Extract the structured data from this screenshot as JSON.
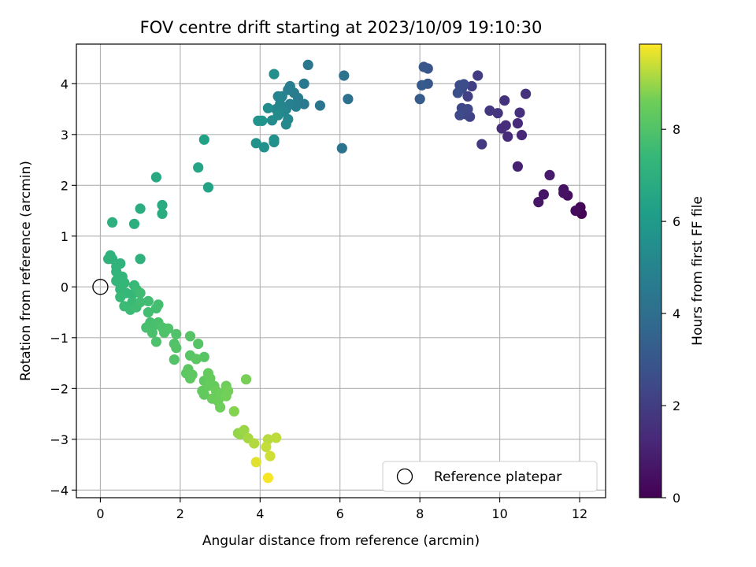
{
  "chart_data": {
    "type": "scatter",
    "title": "FOV centre drift starting at 2023/10/09 19:10:30",
    "xlabel": "Angular distance from reference (arcmin)",
    "ylabel": "Rotation from reference (arcmin)",
    "xlim": [
      -0.6,
      12.65
    ],
    "ylim": [
      -4.15,
      4.78
    ],
    "xticks": [
      0,
      2,
      4,
      6,
      8,
      10,
      12
    ],
    "yticks": [
      -4,
      -3,
      -2,
      -1,
      0,
      1,
      2,
      3,
      4
    ],
    "grid": true,
    "legend": {
      "placement": "lower-right",
      "entries": [
        "Reference platepar"
      ]
    },
    "reference_point": {
      "x": 0,
      "y": 0,
      "label": "Reference platepar"
    },
    "colorbar": {
      "label": "Hours from first FF file",
      "range": [
        0,
        9.85
      ],
      "ticks": [
        0,
        2,
        4,
        6,
        8
      ],
      "colormap": "viridis"
    },
    "points": [
      {
        "x": 12.05,
        "y": 1.44,
        "c": 0.05
      },
      {
        "x": 12.02,
        "y": 1.57,
        "c": 0.15
      },
      {
        "x": 11.9,
        "y": 1.5,
        "c": 0.3
      },
      {
        "x": 11.7,
        "y": 1.8,
        "c": 0.4
      },
      {
        "x": 11.6,
        "y": 1.92,
        "c": 0.5
      },
      {
        "x": 11.6,
        "y": 1.85,
        "c": 0.55
      },
      {
        "x": 11.1,
        "y": 1.82,
        "c": 0.6
      },
      {
        "x": 10.97,
        "y": 1.67,
        "c": 0.65
      },
      {
        "x": 11.25,
        "y": 2.2,
        "c": 0.8
      },
      {
        "x": 10.45,
        "y": 2.37,
        "c": 1.0
      },
      {
        "x": 10.55,
        "y": 2.99,
        "c": 1.2
      },
      {
        "x": 10.2,
        "y": 2.96,
        "c": 1.3
      },
      {
        "x": 10.45,
        "y": 3.22,
        "c": 1.35
      },
      {
        "x": 10.15,
        "y": 3.18,
        "c": 1.4
      },
      {
        "x": 10.05,
        "y": 3.12,
        "c": 1.45
      },
      {
        "x": 10.5,
        "y": 3.43,
        "c": 1.5
      },
      {
        "x": 10.65,
        "y": 3.8,
        "c": 1.55
      },
      {
        "x": 10.12,
        "y": 3.67,
        "c": 1.6
      },
      {
        "x": 9.95,
        "y": 3.42,
        "c": 1.7
      },
      {
        "x": 9.75,
        "y": 3.47,
        "c": 1.8
      },
      {
        "x": 9.55,
        "y": 2.81,
        "c": 1.9
      },
      {
        "x": 9.45,
        "y": 4.16,
        "c": 2.0
      },
      {
        "x": 9.3,
        "y": 3.95,
        "c": 2.05
      },
      {
        "x": 9.2,
        "y": 3.75,
        "c": 2.1
      },
      {
        "x": 9.25,
        "y": 3.35,
        "c": 2.2
      },
      {
        "x": 9.15,
        "y": 3.4,
        "c": 2.3
      },
      {
        "x": 9.05,
        "y": 3.52,
        "c": 2.35
      },
      {
        "x": 9.2,
        "y": 3.5,
        "c": 2.4
      },
      {
        "x": 9.0,
        "y": 3.38,
        "c": 2.45
      },
      {
        "x": 9.05,
        "y": 3.9,
        "c": 2.5
      },
      {
        "x": 9.0,
        "y": 3.97,
        "c": 2.55
      },
      {
        "x": 9.1,
        "y": 3.99,
        "c": 2.6
      },
      {
        "x": 8.95,
        "y": 3.82,
        "c": 2.7
      },
      {
        "x": 8.2,
        "y": 4.3,
        "c": 2.9
      },
      {
        "x": 8.1,
        "y": 4.33,
        "c": 3.0
      },
      {
        "x": 8.2,
        "y": 4.0,
        "c": 3.05
      },
      {
        "x": 8.05,
        "y": 3.97,
        "c": 3.1
      },
      {
        "x": 8.0,
        "y": 3.7,
        "c": 3.2
      },
      {
        "x": 6.2,
        "y": 3.7,
        "c": 4.1
      },
      {
        "x": 6.1,
        "y": 4.16,
        "c": 4.2
      },
      {
        "x": 6.05,
        "y": 2.73,
        "c": 4.25
      },
      {
        "x": 5.5,
        "y": 3.57,
        "c": 4.3
      },
      {
        "x": 5.2,
        "y": 4.37,
        "c": 4.4
      },
      {
        "x": 5.1,
        "y": 4.0,
        "c": 4.45
      },
      {
        "x": 5.1,
        "y": 3.6,
        "c": 4.5
      },
      {
        "x": 4.95,
        "y": 3.72,
        "c": 4.6
      },
      {
        "x": 4.85,
        "y": 3.82,
        "c": 4.65
      },
      {
        "x": 4.75,
        "y": 3.95,
        "c": 4.7
      },
      {
        "x": 4.7,
        "y": 3.88,
        "c": 4.75
      },
      {
        "x": 4.9,
        "y": 3.55,
        "c": 4.8
      },
      {
        "x": 4.75,
        "y": 3.6,
        "c": 4.85
      },
      {
        "x": 4.65,
        "y": 3.5,
        "c": 4.9
      },
      {
        "x": 4.55,
        "y": 3.75,
        "c": 4.95
      },
      {
        "x": 4.45,
        "y": 3.75,
        "c": 5.0
      },
      {
        "x": 4.5,
        "y": 3.6,
        "c": 5.05
      },
      {
        "x": 4.4,
        "y": 3.5,
        "c": 5.1
      },
      {
        "x": 4.6,
        "y": 3.45,
        "c": 5.15
      },
      {
        "x": 4.7,
        "y": 3.3,
        "c": 5.2
      },
      {
        "x": 4.65,
        "y": 3.2,
        "c": 5.25
      },
      {
        "x": 4.45,
        "y": 3.38,
        "c": 5.3
      },
      {
        "x": 4.3,
        "y": 3.28,
        "c": 5.35
      },
      {
        "x": 4.2,
        "y": 3.52,
        "c": 5.4
      },
      {
        "x": 4.35,
        "y": 4.19,
        "c": 5.45
      },
      {
        "x": 4.35,
        "y": 2.9,
        "c": 5.5
      },
      {
        "x": 4.35,
        "y": 2.85,
        "c": 5.55
      },
      {
        "x": 4.1,
        "y": 2.75,
        "c": 5.6
      },
      {
        "x": 3.9,
        "y": 2.83,
        "c": 5.65
      },
      {
        "x": 3.95,
        "y": 3.27,
        "c": 5.7
      },
      {
        "x": 4.05,
        "y": 3.27,
        "c": 5.75
      },
      {
        "x": 2.6,
        "y": 2.9,
        "c": 6.3
      },
      {
        "x": 2.7,
        "y": 1.96,
        "c": 6.4
      },
      {
        "x": 2.45,
        "y": 2.35,
        "c": 6.5
      },
      {
        "x": 1.4,
        "y": 2.16,
        "c": 6.7
      },
      {
        "x": 1.55,
        "y": 1.61,
        "c": 6.8
      },
      {
        "x": 1.55,
        "y": 1.44,
        "c": 6.85
      },
      {
        "x": 1.0,
        "y": 1.54,
        "c": 6.9
      },
      {
        "x": 0.85,
        "y": 1.24,
        "c": 6.95
      },
      {
        "x": 0.3,
        "y": 1.27,
        "c": 7.0
      },
      {
        "x": 1.0,
        "y": 0.55,
        "c": 7.05
      },
      {
        "x": 0.25,
        "y": 0.62,
        "c": 7.1
      },
      {
        "x": 0.3,
        "y": 0.55,
        "c": 7.1
      },
      {
        "x": 0.2,
        "y": 0.55,
        "c": 7.15
      },
      {
        "x": 0.5,
        "y": 0.46,
        "c": 7.15
      },
      {
        "x": 0.4,
        "y": 0.4,
        "c": 7.2
      },
      {
        "x": 0.4,
        "y": 0.3,
        "c": 7.2
      },
      {
        "x": 0.45,
        "y": 0.22,
        "c": 7.25
      },
      {
        "x": 0.55,
        "y": 0.2,
        "c": 7.25
      },
      {
        "x": 0.4,
        "y": 0.12,
        "c": 7.3
      },
      {
        "x": 0.5,
        "y": 0.05,
        "c": 7.3
      },
      {
        "x": 0.6,
        "y": 0.08,
        "c": 7.35
      },
      {
        "x": 0.5,
        "y": -0.05,
        "c": 7.35
      },
      {
        "x": 0.65,
        "y": -0.12,
        "c": 7.4
      },
      {
        "x": 0.8,
        "y": -0.15,
        "c": 7.4
      },
      {
        "x": 0.5,
        "y": -0.2,
        "c": 7.45
      },
      {
        "x": 0.85,
        "y": 0.03,
        "c": 7.45
      },
      {
        "x": 0.9,
        "y": -0.05,
        "c": 7.5
      },
      {
        "x": 0.8,
        "y": -0.3,
        "c": 7.5
      },
      {
        "x": 0.6,
        "y": -0.38,
        "c": 7.55
      },
      {
        "x": 0.75,
        "y": -0.45,
        "c": 7.55
      },
      {
        "x": 0.9,
        "y": -0.4,
        "c": 7.6
      },
      {
        "x": 1.0,
        "y": -0.12,
        "c": 7.6
      },
      {
        "x": 1.0,
        "y": -0.3,
        "c": 7.65
      },
      {
        "x": 1.2,
        "y": -0.28,
        "c": 7.65
      },
      {
        "x": 1.2,
        "y": -0.5,
        "c": 7.7
      },
      {
        "x": 1.4,
        "y": -0.42,
        "c": 7.7
      },
      {
        "x": 1.45,
        "y": -0.35,
        "c": 7.75
      },
      {
        "x": 1.25,
        "y": -0.7,
        "c": 7.75
      },
      {
        "x": 1.15,
        "y": -0.8,
        "c": 7.8
      },
      {
        "x": 1.35,
        "y": -0.75,
        "c": 7.8
      },
      {
        "x": 1.3,
        "y": -0.9,
        "c": 7.85
      },
      {
        "x": 1.45,
        "y": -0.7,
        "c": 7.85
      },
      {
        "x": 1.55,
        "y": -0.8,
        "c": 7.9
      },
      {
        "x": 1.4,
        "y": -1.08,
        "c": 7.9
      },
      {
        "x": 1.6,
        "y": -0.9,
        "c": 7.95
      },
      {
        "x": 1.7,
        "y": -0.82,
        "c": 7.95
      },
      {
        "x": 1.9,
        "y": -0.93,
        "c": 8.0
      },
      {
        "x": 1.85,
        "y": -1.12,
        "c": 8.0
      },
      {
        "x": 1.9,
        "y": -1.2,
        "c": 8.05
      },
      {
        "x": 1.85,
        "y": -1.43,
        "c": 8.05
      },
      {
        "x": 2.25,
        "y": -0.97,
        "c": 8.1
      },
      {
        "x": 2.45,
        "y": -1.12,
        "c": 8.1
      },
      {
        "x": 2.6,
        "y": -1.38,
        "c": 8.15
      },
      {
        "x": 2.25,
        "y": -1.35,
        "c": 8.15
      },
      {
        "x": 2.4,
        "y": -1.42,
        "c": 8.2
      },
      {
        "x": 2.2,
        "y": -1.62,
        "c": 8.2
      },
      {
        "x": 2.15,
        "y": -1.7,
        "c": 8.25
      },
      {
        "x": 2.25,
        "y": -1.8,
        "c": 8.25
      },
      {
        "x": 2.3,
        "y": -1.73,
        "c": 8.3
      },
      {
        "x": 2.6,
        "y": -1.85,
        "c": 8.3
      },
      {
        "x": 2.55,
        "y": -2.05,
        "c": 8.35
      },
      {
        "x": 2.6,
        "y": -2.12,
        "c": 8.35
      },
      {
        "x": 2.7,
        "y": -1.7,
        "c": 8.4
      },
      {
        "x": 2.75,
        "y": -1.8,
        "c": 8.4
      },
      {
        "x": 2.7,
        "y": -1.95,
        "c": 8.45
      },
      {
        "x": 2.85,
        "y": -1.95,
        "c": 8.45
      },
      {
        "x": 2.9,
        "y": -2.05,
        "c": 8.5
      },
      {
        "x": 2.8,
        "y": -2.2,
        "c": 8.5
      },
      {
        "x": 2.95,
        "y": -2.25,
        "c": 8.55
      },
      {
        "x": 3.0,
        "y": -2.1,
        "c": 8.55
      },
      {
        "x": 3.0,
        "y": -2.37,
        "c": 8.6
      },
      {
        "x": 3.15,
        "y": -1.95,
        "c": 8.6
      },
      {
        "x": 3.15,
        "y": -2.15,
        "c": 8.65
      },
      {
        "x": 3.2,
        "y": -2.05,
        "c": 8.65
      },
      {
        "x": 3.65,
        "y": -1.82,
        "c": 8.7
      },
      {
        "x": 3.35,
        "y": -2.45,
        "c": 8.8
      },
      {
        "x": 3.45,
        "y": -2.88,
        "c": 8.9
      },
      {
        "x": 3.5,
        "y": -2.9,
        "c": 8.95
      },
      {
        "x": 3.6,
        "y": -2.82,
        "c": 9.0
      },
      {
        "x": 3.7,
        "y": -2.98,
        "c": 9.1
      },
      {
        "x": 3.85,
        "y": -3.08,
        "c": 9.2
      },
      {
        "x": 4.2,
        "y": -3.0,
        "c": 9.25
      },
      {
        "x": 4.4,
        "y": -2.97,
        "c": 9.3
      },
      {
        "x": 4.15,
        "y": -3.15,
        "c": 9.35
      },
      {
        "x": 4.25,
        "y": -3.33,
        "c": 9.45
      },
      {
        "x": 3.9,
        "y": -3.45,
        "c": 9.6
      },
      {
        "x": 4.2,
        "y": -3.76,
        "c": 9.8
      }
    ]
  }
}
